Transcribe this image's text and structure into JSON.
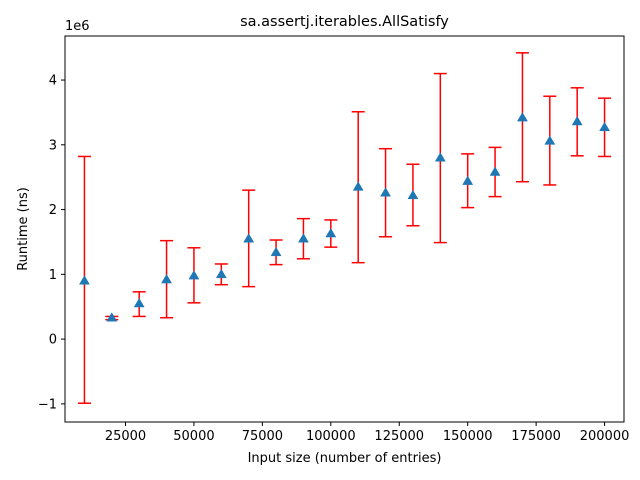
{
  "chart_data": {
    "type": "scatter",
    "title": "sa.assertj.iterables.AllSatisfy",
    "xlabel": "Input size (number of entries)",
    "ylabel": "Runtime (ns)",
    "y_offset_label": "1e6",
    "xlim": [
      2900,
      207100
    ],
    "ylim": [
      -1.28,
      4.68
    ],
    "y_scale_factor": 1000000,
    "x_ticks": [
      {
        "value": 25000,
        "label": "25000"
      },
      {
        "value": 50000,
        "label": "50000"
      },
      {
        "value": 75000,
        "label": "75000"
      },
      {
        "value": 100000,
        "label": "100000"
      },
      {
        "value": 125000,
        "label": "125000"
      },
      {
        "value": 150000,
        "label": "150000"
      },
      {
        "value": 175000,
        "label": "175000"
      },
      {
        "value": 200000,
        "label": "200000"
      }
    ],
    "y_ticks": [
      {
        "value": -1,
        "label": "−1"
      },
      {
        "value": 0,
        "label": "0"
      },
      {
        "value": 1,
        "label": "1"
      },
      {
        "value": 2,
        "label": "2"
      },
      {
        "value": 3,
        "label": "3"
      },
      {
        "value": 4,
        "label": "4"
      }
    ],
    "series": [
      {
        "marker": "triangle",
        "marker_color": "#1f77b4",
        "errorbar_color": "#ff0000",
        "points": [
          {
            "x": 10000,
            "y": 0.9,
            "lo": -0.99,
            "hi": 2.82
          },
          {
            "x": 20000,
            "y": 0.33,
            "lo": 0.3,
            "hi": 0.35
          },
          {
            "x": 30000,
            "y": 0.55,
            "lo": 0.35,
            "hi": 0.73
          },
          {
            "x": 40000,
            "y": 0.92,
            "lo": 0.33,
            "hi": 1.52
          },
          {
            "x": 50000,
            "y": 0.98,
            "lo": 0.56,
            "hi": 1.41
          },
          {
            "x": 60000,
            "y": 1.0,
            "lo": 0.84,
            "hi": 1.16
          },
          {
            "x": 70000,
            "y": 1.55,
            "lo": 0.81,
            "hi": 2.3
          },
          {
            "x": 80000,
            "y": 1.34,
            "lo": 1.15,
            "hi": 1.53
          },
          {
            "x": 90000,
            "y": 1.55,
            "lo": 1.24,
            "hi": 1.86
          },
          {
            "x": 100000,
            "y": 1.63,
            "lo": 1.42,
            "hi": 1.84
          },
          {
            "x": 110000,
            "y": 2.35,
            "lo": 1.18,
            "hi": 3.51
          },
          {
            "x": 120000,
            "y": 2.26,
            "lo": 1.58,
            "hi": 2.94
          },
          {
            "x": 130000,
            "y": 2.22,
            "lo": 1.75,
            "hi": 2.7
          },
          {
            "x": 140000,
            "y": 2.8,
            "lo": 1.49,
            "hi": 4.1
          },
          {
            "x": 150000,
            "y": 2.44,
            "lo": 2.03,
            "hi": 2.86
          },
          {
            "x": 160000,
            "y": 2.58,
            "lo": 2.2,
            "hi": 2.96
          },
          {
            "x": 170000,
            "y": 3.42,
            "lo": 2.43,
            "hi": 4.42
          },
          {
            "x": 180000,
            "y": 3.06,
            "lo": 2.38,
            "hi": 3.75
          },
          {
            "x": 190000,
            "y": 3.36,
            "lo": 2.83,
            "hi": 3.88
          },
          {
            "x": 200000,
            "y": 3.27,
            "lo": 2.82,
            "hi": 3.72
          }
        ]
      }
    ],
    "grid": false,
    "legend": "none"
  }
}
